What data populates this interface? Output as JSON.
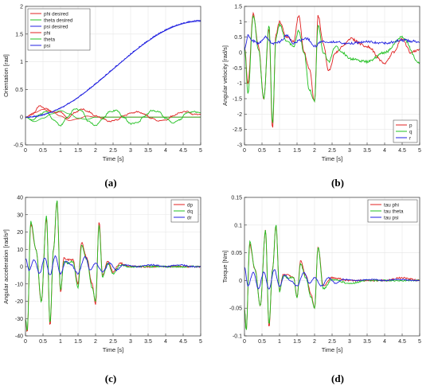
{
  "figure": {
    "captions": [
      "(a)",
      "(b)",
      "(c)",
      "(d)"
    ]
  },
  "chart_data": [
    {
      "type": "line",
      "panel": "a",
      "xlabel": "Time [s]",
      "ylabel": "Orientation [rad]",
      "xlim": [
        0,
        5
      ],
      "ylim": [
        -0.5,
        2
      ],
      "xticks": [
        0,
        0.5,
        1,
        1.5,
        2,
        2.5,
        3,
        3.5,
        4,
        4.5,
        5
      ],
      "yticks": [
        -0.5,
        0,
        0.5,
        1,
        1.5,
        2
      ],
      "grid": true,
      "legend": "top-left",
      "series": [
        {
          "name": "phi desired",
          "color": "#e02020",
          "noise": 0,
          "t": [
            0,
            0.25,
            0.5,
            0.75,
            1,
            1.25,
            1.5,
            1.75,
            2,
            5
          ],
          "y": [
            0,
            0.08,
            0.14,
            0.1,
            0.02,
            -0.06,
            -0.03,
            0.02,
            0,
            0
          ]
        },
        {
          "name": "theta desired",
          "color": "#20c020",
          "noise": 0,
          "t": [
            0,
            0.25,
            0.5,
            0.75,
            1,
            1.25,
            1.5,
            1.75,
            2,
            5
          ],
          "y": [
            0,
            -0.08,
            -0.02,
            0.06,
            0.12,
            0.06,
            -0.02,
            -0.04,
            0,
            0
          ]
        },
        {
          "name": "psi desired",
          "color": "#2020e0",
          "noise": 0,
          "t": [
            0,
            5
          ],
          "y": [
            0,
            1.73
          ]
        },
        {
          "name": "phi",
          "color": "#e02020",
          "noise": 0.012,
          "t": [
            0,
            0.2,
            0.4,
            0.6,
            0.8,
            1.0,
            1.2,
            1.4,
            1.6,
            1.8,
            2.0,
            2.2,
            2.4,
            2.6,
            2.8,
            3.0,
            3.2,
            3.4,
            3.6,
            3.8,
            4.0,
            4.2,
            4.4,
            4.6,
            4.8,
            5.0
          ],
          "y": [
            0,
            0.05,
            0.2,
            0.15,
            0.08,
            0.1,
            -0.02,
            0.08,
            0.15,
            0.1,
            0.02,
            -0.02,
            -0.08,
            -0.05,
            0.02,
            0.07,
            0.1,
            0.05,
            -0.02,
            -0.07,
            -0.05,
            0.02,
            0.08,
            0.1,
            0.05,
            0.06
          ]
        },
        {
          "name": "theta",
          "color": "#20c020",
          "noise": 0.012,
          "t": [
            0,
            0.2,
            0.4,
            0.6,
            0.8,
            1.0,
            1.2,
            1.4,
            1.6,
            1.8,
            2.0,
            2.2,
            2.4,
            2.6,
            2.8,
            3.0,
            3.2,
            3.4,
            3.6,
            3.8,
            4.0,
            4.2,
            4.4,
            4.6,
            4.8,
            5.0
          ],
          "y": [
            0,
            -0.05,
            0.05,
            0.1,
            -0.05,
            -0.15,
            0.0,
            0.15,
            0.12,
            -0.08,
            -0.15,
            -0.03,
            0.1,
            0.12,
            0.0,
            -0.12,
            -0.1,
            0.02,
            0.12,
            0.1,
            -0.02,
            -0.1,
            -0.05,
            0.08,
            0.1,
            0.07
          ]
        },
        {
          "name": "psi",
          "color": "#2020e0",
          "noise": 0.012,
          "t": [
            0,
            5
          ],
          "y": [
            0,
            1.74
          ]
        }
      ]
    },
    {
      "type": "line",
      "panel": "b",
      "xlabel": "Time [s]",
      "ylabel": "Angular velocity [rad/s]",
      "xlim": [
        0,
        5
      ],
      "ylim": [
        -3,
        1.5
      ],
      "xticks": [
        0,
        0.5,
        1,
        1.5,
        2,
        2.5,
        3,
        3.5,
        4,
        4.5,
        5
      ],
      "yticks": [
        -3,
        -2.5,
        -2,
        -1.5,
        -1,
        -0.5,
        0,
        0.5,
        1,
        1.5
      ],
      "grid": true,
      "legend": "bottom-right",
      "series": [
        {
          "name": "p",
          "color": "#e02020",
          "noise": 0.04,
          "t": [
            0,
            0.1,
            0.25,
            0.4,
            0.55,
            0.7,
            0.8,
            0.9,
            1.0,
            1.2,
            1.4,
            1.55,
            1.7,
            1.85,
            2.0,
            2.1,
            2.25,
            2.4,
            2.6,
            2.8,
            3.0,
            3.5,
            4.0,
            4.25,
            4.5,
            4.75,
            5.0
          ],
          "y": [
            0.2,
            -1.0,
            1.25,
            0.2,
            -1.5,
            0.8,
            -2.5,
            0.6,
            1.0,
            0.5,
            0.35,
            1.2,
            0.0,
            -0.5,
            -1.6,
            1.2,
            0.3,
            -0.6,
            0.0,
            0.2,
            0.45,
            0.2,
            -0.35,
            0.0,
            0.45,
            0.0,
            0.1
          ]
        },
        {
          "name": "q",
          "color": "#20c020",
          "noise": 0.04,
          "t": [
            0,
            0.1,
            0.25,
            0.4,
            0.55,
            0.7,
            0.8,
            0.9,
            1.0,
            1.2,
            1.4,
            1.55,
            1.7,
            1.85,
            2.0,
            2.1,
            2.25,
            2.4,
            2.6,
            2.8,
            3.0,
            3.5,
            4.0,
            4.5,
            5.0
          ],
          "y": [
            0.2,
            -1.3,
            1.2,
            0.1,
            -1.5,
            0.9,
            -2.3,
            0.5,
            0.9,
            0.4,
            0.2,
            0.7,
            0.0,
            -1.2,
            -1.6,
            0.9,
            0.0,
            -0.3,
            0.2,
            0.0,
            -0.2,
            -0.3,
            0.0,
            0.5,
            -0.35
          ]
        },
        {
          "name": "r",
          "color": "#2020e0",
          "noise": 0.04,
          "t": [
            0,
            0.1,
            0.2,
            0.4,
            0.6,
            0.8,
            1.0,
            1.2,
            1.4,
            1.6,
            1.8,
            2.0,
            2.2,
            2.5,
            3.0,
            3.5,
            4.0,
            4.5,
            5.0
          ],
          "y": [
            0.1,
            0.55,
            0.4,
            0.3,
            0.5,
            0.3,
            0.35,
            0.55,
            0.3,
            0.4,
            0.45,
            0.2,
            0.35,
            0.35,
            0.3,
            0.35,
            0.3,
            0.4,
            0.35
          ]
        }
      ]
    },
    {
      "type": "line",
      "panel": "c",
      "xlabel": "Time [s]",
      "ylabel": "Angular acceleration [rad/s²]",
      "xlim": [
        0,
        5
      ],
      "ylim": [
        -40,
        40
      ],
      "xticks": [
        0,
        0.5,
        1,
        1.5,
        2,
        2.5,
        3,
        3.5,
        4,
        4.5,
        5
      ],
      "yticks": [
        -40,
        -30,
        -20,
        -10,
        0,
        10,
        20,
        30,
        40
      ],
      "grid": true,
      "legend": "top-right",
      "series": [
        {
          "name": "dp",
          "color": "#e02020",
          "noise": 0.5,
          "t": [
            0,
            0.05,
            0.15,
            0.3,
            0.45,
            0.6,
            0.7,
            0.8,
            0.9,
            1.0,
            1.1,
            1.2,
            1.35,
            1.5,
            1.6,
            1.75,
            1.9,
            2.0,
            2.1,
            2.2,
            2.35,
            2.5,
            2.7,
            3.0,
            3.5,
            4.0,
            4.5,
            5.0
          ],
          "y": [
            -30,
            -38,
            25,
            10,
            -20,
            28,
            -34,
            10,
            38,
            -15,
            5,
            4,
            4,
            -10,
            14,
            5,
            -10,
            -22,
            26,
            -5,
            3,
            -3,
            2,
            0,
            0,
            0,
            0,
            0
          ]
        },
        {
          "name": "dq",
          "color": "#20c020",
          "noise": 0.5,
          "t": [
            0,
            0.05,
            0.15,
            0.3,
            0.45,
            0.6,
            0.7,
            0.8,
            0.9,
            1.0,
            1.1,
            1.2,
            1.35,
            1.5,
            1.6,
            1.75,
            1.9,
            2.0,
            2.1,
            2.2,
            2.35,
            2.5,
            2.7,
            3.0,
            3.5,
            4.0,
            4.5,
            5.0
          ],
          "y": [
            -30,
            -37,
            26,
            10,
            -20,
            29,
            -33,
            10,
            38,
            -14,
            3,
            2,
            3,
            -12,
            12,
            4,
            -12,
            -20,
            24,
            -6,
            2,
            -4,
            1,
            0,
            0,
            0,
            0,
            0
          ]
        },
        {
          "name": "dr",
          "color": "#2020e0",
          "noise": 0.4,
          "t": [
            0,
            0.1,
            0.25,
            0.4,
            0.55,
            0.7,
            0.85,
            1.0,
            1.15,
            1.3,
            1.5,
            1.7,
            1.85,
            2.0,
            2.2,
            2.4,
            2.6,
            2.8,
            3.2,
            3.6,
            4.0,
            4.4,
            4.8,
            5.0
          ],
          "y": [
            5,
            -2,
            4,
            -4,
            5,
            -5,
            6,
            -4,
            3,
            1,
            -4,
            6,
            -2,
            2,
            -3,
            2,
            -2,
            1,
            0,
            1,
            0,
            1,
            0,
            0
          ]
        }
      ]
    },
    {
      "type": "line",
      "panel": "d",
      "xlabel": "Time [s]",
      "ylabel": "Torque [Nm]",
      "xlim": [
        0,
        5
      ],
      "ylim": [
        -0.1,
        0.15
      ],
      "xticks": [
        0,
        0.5,
        1,
        1.5,
        2,
        2.5,
        3,
        3.5,
        4,
        4.5,
        5
      ],
      "yticks": [
        -0.1,
        -0.05,
        0,
        0.05,
        0.1,
        0.15
      ],
      "grid": true,
      "legend": "top-right",
      "series": [
        {
          "name": "tau phi",
          "color": "#e02020",
          "noise": 0.0015,
          "t": [
            0,
            0.05,
            0.15,
            0.3,
            0.45,
            0.6,
            0.7,
            0.8,
            0.9,
            1.0,
            1.1,
            1.25,
            1.4,
            1.5,
            1.6,
            1.75,
            1.9,
            2.0,
            2.1,
            2.25,
            2.5,
            3.0,
            3.5,
            4.0,
            4.5,
            5.0
          ],
          "y": [
            -0.05,
            -0.09,
            0.065,
            0.02,
            -0.045,
            0.09,
            -0.085,
            0.02,
            0.1,
            -0.02,
            0.01,
            0.01,
            0.005,
            -0.03,
            0.035,
            0.01,
            -0.025,
            -0.05,
            0.06,
            -0.01,
            0.005,
            0.0,
            0.0,
            0.0,
            0.005,
            0.0
          ]
        },
        {
          "name": "tau theta",
          "color": "#20c020",
          "noise": 0.0015,
          "t": [
            0,
            0.05,
            0.15,
            0.3,
            0.45,
            0.6,
            0.7,
            0.8,
            0.9,
            1.0,
            1.1,
            1.25,
            1.4,
            1.5,
            1.6,
            1.75,
            1.9,
            2.0,
            2.1,
            2.25,
            2.5,
            3.0,
            3.5,
            4.0,
            4.5,
            5.0
          ],
          "y": [
            -0.05,
            -0.09,
            0.07,
            0.02,
            -0.045,
            0.09,
            -0.08,
            0.02,
            0.1,
            -0.02,
            0.008,
            0.005,
            0.005,
            -0.03,
            0.03,
            0.005,
            -0.03,
            -0.05,
            0.06,
            -0.015,
            0.002,
            -0.005,
            0.0,
            0.0,
            0.0,
            0.0
          ]
        },
        {
          "name": "tau psi",
          "color": "#2020e0",
          "noise": 0.001,
          "t": [
            0,
            0.1,
            0.25,
            0.4,
            0.55,
            0.7,
            0.85,
            1.0,
            1.15,
            1.3,
            1.5,
            1.7,
            1.85,
            2.0,
            2.2,
            2.4,
            2.6,
            2.8,
            3.2,
            3.6,
            4.0,
            4.4,
            4.8,
            5.0
          ],
          "y": [
            0.025,
            -0.01,
            0.015,
            -0.015,
            0.015,
            -0.015,
            0.02,
            -0.01,
            0.01,
            0.0,
            -0.01,
            0.015,
            -0.005,
            0.005,
            -0.01,
            0.005,
            -0.005,
            0.002,
            0.0,
            0.002,
            0.0,
            0.002,
            0.0,
            0.0
          ]
        }
      ]
    }
  ]
}
